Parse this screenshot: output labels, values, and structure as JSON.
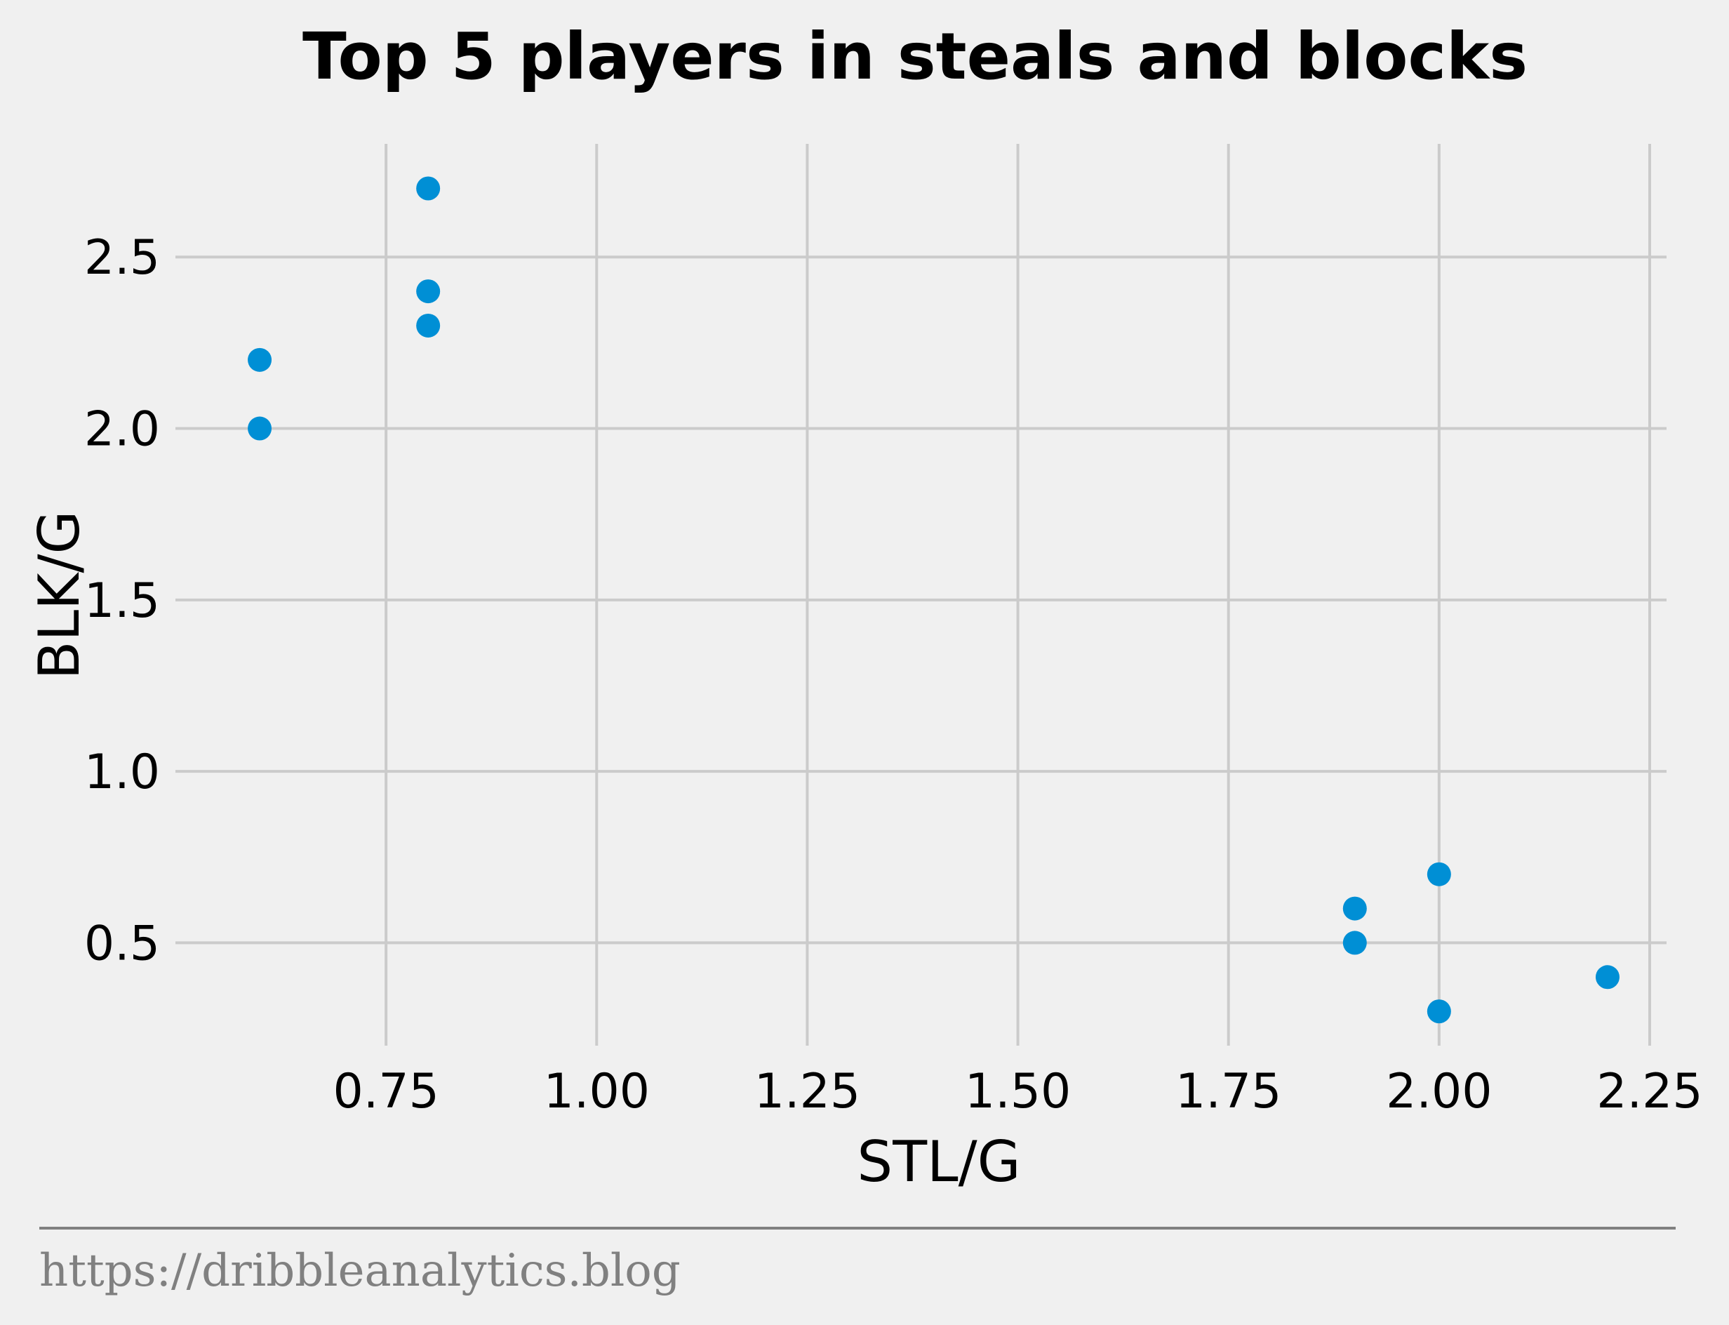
{
  "chart_data": {
    "type": "scatter",
    "title": "Top 5 players in steals and blocks",
    "xlabel": "STL/G",
    "ylabel": "BLK/G",
    "xlim": [
      0.5,
      2.27
    ],
    "ylim": [
      0.2,
      2.83
    ],
    "xticks": [
      "0.75",
      "1.00",
      "1.25",
      "1.50",
      "1.75",
      "2.00",
      "2.25"
    ],
    "yticks": [
      "0.5",
      "1.0",
      "1.5",
      "2.0",
      "2.5"
    ],
    "grid": true,
    "marker_color": "#008fd5",
    "points": [
      {
        "x": 0.6,
        "y": 2.2
      },
      {
        "x": 0.6,
        "y": 2.0
      },
      {
        "x": 0.8,
        "y": 2.7
      },
      {
        "x": 0.8,
        "y": 2.4
      },
      {
        "x": 0.8,
        "y": 2.3
      },
      {
        "x": 1.9,
        "y": 0.6
      },
      {
        "x": 1.9,
        "y": 0.5
      },
      {
        "x": 2.0,
        "y": 0.7
      },
      {
        "x": 2.0,
        "y": 0.3
      },
      {
        "x": 2.2,
        "y": 0.4
      }
    ]
  },
  "footer": {
    "url": "https://dribbleanalytics.blog"
  }
}
